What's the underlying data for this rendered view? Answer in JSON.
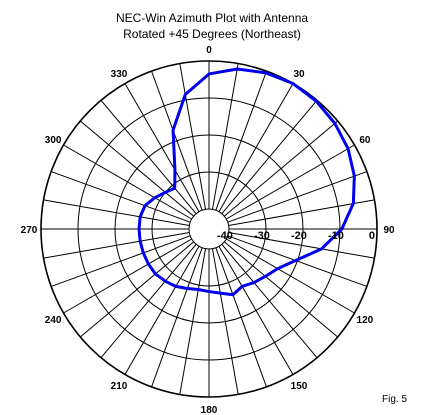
{
  "figure_label": "Fig. 5",
  "chart_data": {
    "type": "polar-line",
    "title_lines": [
      "NEC-Win Azimuth Plot with Antenna",
      "Rotated +45 Degrees (Northeast)"
    ],
    "angle_tick_labels": [
      "0",
      "30",
      "60",
      "90",
      "120",
      "150",
      "180",
      "210",
      "240",
      "270",
      "300",
      "330"
    ],
    "angle_grid_step_deg": 10,
    "radial_tick_labels": [
      "0",
      "-10",
      "-20",
      "-30",
      "-40"
    ],
    "radial_grid_db": [
      0,
      -10,
      -20,
      -30,
      -40
    ],
    "radial_range_db": [
      -40,
      0
    ],
    "series": [
      {
        "color": "#0000ee",
        "angles_deg": [
          0,
          10,
          20,
          30,
          40,
          50,
          60,
          70,
          80,
          90,
          100,
          110,
          120,
          130,
          140,
          150,
          160,
          170,
          180,
          190,
          200,
          210,
          220,
          230,
          240,
          250,
          260,
          270,
          280,
          290,
          300,
          310,
          320,
          330,
          340,
          350,
          360
        ],
        "values_db": [
          -3.5,
          -1.5,
          -0.5,
          0,
          -0.3,
          -1.0,
          -2.0,
          -3.6,
          -5.8,
          -9.5,
          -14.5,
          -20.5,
          -24.0,
          -25.5,
          -26.5,
          -27.5,
          -26.5,
          -27.8,
          -28.5,
          -28.8,
          -28.3,
          -27.5,
          -27.0,
          -26.5,
          -26.5,
          -26.5,
          -26.5,
          -26.5,
          -26.5,
          -27.0,
          -28.5,
          -30.0,
          -31.0,
          -27.0,
          -17.0,
          -8.5,
          -3.5
        ]
      }
    ]
  }
}
